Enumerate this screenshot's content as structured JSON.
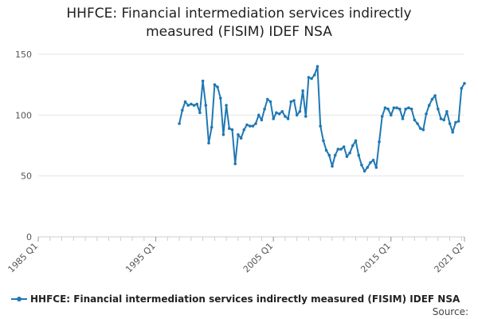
{
  "title_line1": "HHFCE: Financial intermediation services indirectly",
  "title_line2": "measured (FISIM) IDEF NSA",
  "legend_label": "HHFCE: Financial intermediation services indirectly measured (FISIM) IDEF NSA",
  "source_label": "Source:",
  "colors": {
    "series": "#1f78b4",
    "grid": "#e6e6e6",
    "axis_text": "#555555"
  },
  "chart_data": {
    "type": "line",
    "title": "HHFCE: Financial intermediation services indirectly measured (FISIM) IDEF NSA",
    "xlabel": "",
    "ylabel": "",
    "ylim": [
      0,
      150
    ],
    "yticks": [
      0,
      50,
      100,
      150
    ],
    "xlim": [
      "1985 Q1",
      "2021 Q2"
    ],
    "xticks": [
      "1985 Q1",
      "1995 Q1",
      "2005 Q1",
      "2015 Q1",
      "2021 Q2"
    ],
    "grid": true,
    "legend_position": "bottom",
    "series": [
      {
        "name": "HHFCE: Financial intermediation services indirectly measured (FISIM) IDEF NSA",
        "start": "1997 Q1",
        "values": [
          93,
          104,
          111,
          108,
          109,
          108,
          109,
          102,
          128,
          108,
          77,
          90,
          125,
          123,
          114,
          84,
          108,
          89,
          88,
          60,
          84,
          81,
          88,
          92,
          91,
          91,
          93,
          100,
          96,
          105,
          113,
          111,
          97,
          102,
          101,
          103,
          99,
          97,
          111,
          112,
          100,
          103,
          120,
          99,
          131,
          130,
          133,
          140,
          91,
          79,
          71,
          67,
          58,
          67,
          72,
          72,
          74,
          66,
          69,
          75,
          79,
          67,
          59,
          54,
          57,
          61,
          63,
          57,
          78,
          99,
          106,
          105,
          100,
          106,
          106,
          105,
          97,
          105,
          106,
          105,
          96,
          93,
          89,
          88,
          101,
          108,
          113,
          116,
          105,
          97,
          96,
          103,
          93,
          86,
          94,
          95,
          122,
          126
        ]
      }
    ]
  }
}
